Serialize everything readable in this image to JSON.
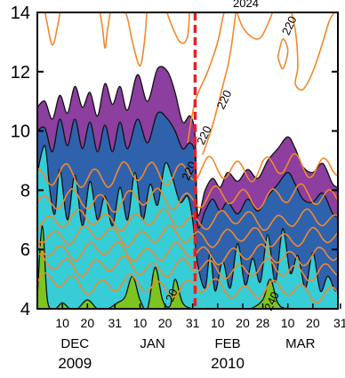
{
  "header_fragment": "2024",
  "chart_data": {
    "type": "contour",
    "title": "",
    "xlabel": "",
    "ylabel": "",
    "y_range": [
      4,
      14
    ],
    "y_ticks": [
      4,
      6,
      8,
      10,
      12,
      14
    ],
    "x_range_days": [
      0,
      120
    ],
    "x_tick_labels": [
      {
        "text": "10",
        "day": 10
      },
      {
        "text": "20",
        "day": 20
      },
      {
        "text": "31",
        "day": 31
      },
      {
        "text": "10",
        "day": 41
      },
      {
        "text": "20",
        "day": 51
      },
      {
        "text": "31",
        "day": 62
      },
      {
        "text": "10",
        "day": 72
      },
      {
        "text": "20",
        "day": 82
      },
      {
        "text": "28",
        "day": 90
      },
      {
        "text": "10",
        "day": 100
      },
      {
        "text": "20",
        "day": 110
      },
      {
        "text": "31",
        "day": 121
      }
    ],
    "month_labels": [
      {
        "text": "DEC",
        "day": 15
      },
      {
        "text": "JAN",
        "day": 46
      },
      {
        "text": "FEB",
        "day": 76
      },
      {
        "text": "MAR",
        "day": 105
      }
    ],
    "year_labels": [
      {
        "text": "2009",
        "day": 15
      },
      {
        "text": "2010",
        "day": 76
      }
    ],
    "event_line_day": 63,
    "filled_levels": [
      {
        "color": "#8c3f9e",
        "day_top": [
          [
            0,
            10.8
          ],
          [
            3,
            11.0
          ],
          [
            6,
            10.4
          ],
          [
            9,
            11.2
          ],
          [
            12,
            10.6
          ],
          [
            15,
            11.5
          ],
          [
            18,
            10.8
          ],
          [
            21,
            11.3
          ],
          [
            24,
            10.5
          ],
          [
            27,
            11.6
          ],
          [
            30,
            10.9
          ],
          [
            33,
            11.5
          ],
          [
            36,
            10.7
          ],
          [
            40,
            11.9
          ],
          [
            44,
            11.0
          ],
          [
            48,
            12.1
          ],
          [
            52,
            12.0
          ],
          [
            55,
            11.3
          ],
          [
            58,
            10.3
          ],
          [
            61,
            10.5
          ],
          [
            63,
            9.8
          ],
          [
            64,
            7.2
          ],
          [
            67,
            8.0
          ],
          [
            70,
            8.4
          ],
          [
            73,
            8.1
          ],
          [
            76,
            8.6
          ],
          [
            80,
            8.3
          ],
          [
            84,
            8.7
          ],
          [
            88,
            8.4
          ],
          [
            92,
            9.0
          ],
          [
            96,
            9.4
          ],
          [
            100,
            9.8
          ],
          [
            103,
            9.4
          ],
          [
            106,
            8.8
          ],
          [
            110,
            8.6
          ],
          [
            114,
            8.9
          ],
          [
            118,
            8.2
          ],
          [
            121,
            8.1
          ]
        ]
      },
      {
        "color": "#2f62ad",
        "day_top": [
          [
            0,
            10.0
          ],
          [
            3,
            10.1
          ],
          [
            6,
            9.3
          ],
          [
            9,
            10.4
          ],
          [
            12,
            9.5
          ],
          [
            15,
            10.4
          ],
          [
            18,
            9.4
          ],
          [
            21,
            10.3
          ],
          [
            24,
            9.3
          ],
          [
            27,
            10.2
          ],
          [
            30,
            9.3
          ],
          [
            33,
            10.3
          ],
          [
            36,
            9.4
          ],
          [
            40,
            10.4
          ],
          [
            44,
            9.6
          ],
          [
            48,
            10.6
          ],
          [
            52,
            10.4
          ],
          [
            55,
            10.0
          ],
          [
            58,
            9.4
          ],
          [
            61,
            9.6
          ],
          [
            63,
            9.1
          ],
          [
            64,
            6.8
          ],
          [
            67,
            7.3
          ],
          [
            70,
            7.7
          ],
          [
            73,
            7.3
          ],
          [
            76,
            7.6
          ],
          [
            80,
            7.2
          ],
          [
            84,
            7.7
          ],
          [
            88,
            7.3
          ],
          [
            92,
            7.8
          ],
          [
            96,
            8.2
          ],
          [
            100,
            8.6
          ],
          [
            103,
            8.2
          ],
          [
            106,
            7.7
          ],
          [
            110,
            7.6
          ],
          [
            114,
            7.9
          ],
          [
            118,
            7.2
          ],
          [
            121,
            7.1
          ]
        ]
      },
      {
        "color": "#36cdd6",
        "day_top": [
          [
            0,
            8.6
          ],
          [
            3,
            9.5
          ],
          [
            5,
            8.0
          ],
          [
            7,
            7.2
          ],
          [
            9,
            8.7
          ],
          [
            12,
            7.0
          ],
          [
            15,
            8.5
          ],
          [
            18,
            6.8
          ],
          [
            21,
            8.3
          ],
          [
            24,
            7.0
          ],
          [
            27,
            7.8
          ],
          [
            30,
            6.8
          ],
          [
            33,
            8.1
          ],
          [
            36,
            7.0
          ],
          [
            39,
            8.6
          ],
          [
            42,
            7.0
          ],
          [
            45,
            8.2
          ],
          [
            48,
            7.5
          ],
          [
            51,
            8.9
          ],
          [
            54,
            8.4
          ],
          [
            57,
            7.6
          ],
          [
            60,
            7.8
          ],
          [
            62,
            7.0
          ],
          [
            64,
            5.5
          ],
          [
            67,
            4.7
          ],
          [
            69,
            5.9
          ],
          [
            71,
            4.6
          ],
          [
            74,
            5.6
          ],
          [
            77,
            4.7
          ],
          [
            80,
            6.2
          ],
          [
            83,
            4.8
          ],
          [
            86,
            5.7
          ],
          [
            89,
            4.9
          ],
          [
            92,
            6.5
          ],
          [
            95,
            4.9
          ],
          [
            98,
            6.7
          ],
          [
            101,
            5.2
          ],
          [
            104,
            5.8
          ],
          [
            107,
            4.7
          ],
          [
            110,
            5.9
          ],
          [
            113,
            4.6
          ],
          [
            116,
            5.1
          ],
          [
            119,
            4.6
          ],
          [
            121,
            4.8
          ]
        ]
      },
      {
        "color": "#7ec420",
        "day_top": [
          [
            0,
            4.4
          ],
          [
            2,
            6.8
          ],
          [
            4,
            4.3
          ],
          [
            7,
            4.0
          ],
          [
            10,
            4.2
          ],
          [
            13,
            4.0
          ],
          [
            16,
            4.0
          ],
          [
            20,
            4.3
          ],
          [
            24,
            4.0
          ],
          [
            28,
            4.0
          ],
          [
            32,
            4.2
          ],
          [
            35,
            4.4
          ],
          [
            38,
            5.1
          ],
          [
            41,
            4.3
          ],
          [
            44,
            4.0
          ],
          [
            47,
            5.4
          ],
          [
            50,
            4.3
          ],
          [
            53,
            4.1
          ],
          [
            55,
            5.0
          ],
          [
            58,
            4.2
          ],
          [
            62,
            4.0
          ],
          [
            66,
            4.0
          ],
          [
            70,
            4.0
          ],
          [
            75,
            4.0
          ],
          [
            80,
            4.0
          ],
          [
            85,
            4.0
          ],
          [
            90,
            4.3
          ],
          [
            93,
            5.0
          ],
          [
            96,
            4.2
          ],
          [
            100,
            4.0
          ],
          [
            110,
            4.0
          ],
          [
            121,
            4.0
          ]
        ]
      }
    ],
    "contour_lines": {
      "color": "#f2882b",
      "labels": [
        {
          "text": "220",
          "day": 102,
          "height": 13.5
        },
        {
          "text": "220",
          "day": 76,
          "height": 11.0
        },
        {
          "text": "220",
          "day": 68,
          "height": 9.8
        },
        {
          "text": "220",
          "day": 62,
          "height": 8.6
        },
        {
          "text": "240",
          "day": 95,
          "height": 4.2
        },
        {
          "text": "20",
          "day": 55,
          "height": 4.4
        }
      ],
      "waves": [
        {
          "base": 4.9,
          "amp": 0.25,
          "slope": -0.003
        },
        {
          "base": 5.5,
          "amp": 0.25,
          "slope": -0.002
        },
        {
          "base": 6.0,
          "amp": 0.25,
          "slope": -0.002
        },
        {
          "base": 6.5,
          "amp": 0.25,
          "slope": -0.001
        },
        {
          "base": 7.0,
          "amp": 0.25,
          "slope": 0.0
        },
        {
          "base": 7.6,
          "amp": 0.3,
          "slope": 0.002
        },
        {
          "base": 8.4,
          "amp": 0.35,
          "slope": 0.004
        }
      ]
    }
  }
}
